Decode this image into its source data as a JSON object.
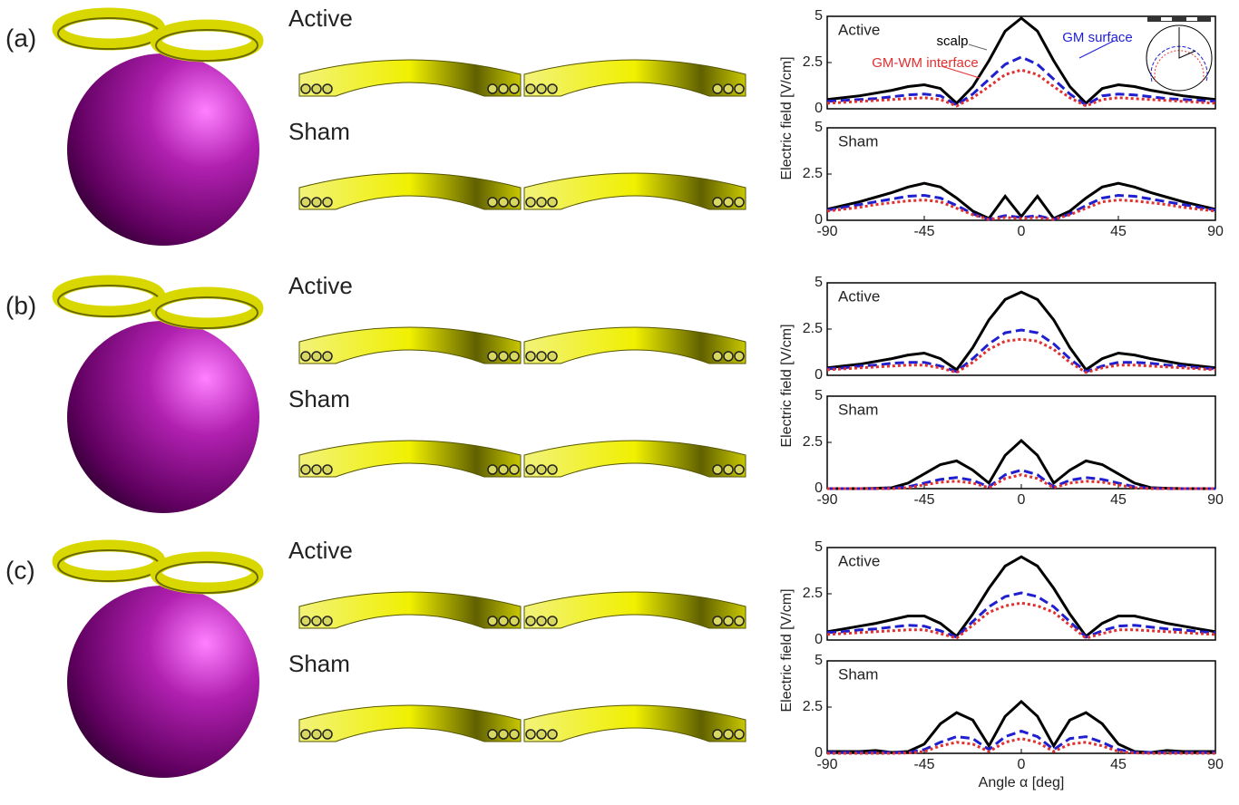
{
  "panels": [
    {
      "label": "(a)",
      "coils": [
        "Active",
        "Sham"
      ]
    },
    {
      "label": "(b)",
      "coils": [
        "Active",
        "Sham"
      ]
    },
    {
      "label": "(c)",
      "coils": [
        "Active",
        "Sham"
      ]
    }
  ],
  "chart_data": [
    {
      "type": "line",
      "title": "Active",
      "x": [
        -90,
        -82.5,
        -75,
        -67.5,
        -60,
        -52.5,
        -45,
        -37.5,
        -30,
        -22.5,
        -15,
        -7.5,
        0,
        7.5,
        15,
        22.5,
        30,
        37.5,
        45,
        52.5,
        60,
        67.5,
        75,
        82.5,
        90
      ],
      "series": [
        {
          "name": "scalp",
          "color": "#000000",
          "linestyle": "solid",
          "values": [
            0.5,
            0.6,
            0.7,
            0.85,
            1.0,
            1.2,
            1.3,
            1.1,
            0.3,
            1.2,
            2.6,
            4.2,
            4.9,
            4.2,
            2.6,
            1.2,
            0.3,
            1.1,
            1.3,
            1.2,
            1.0,
            0.85,
            0.7,
            0.6,
            0.5
          ]
        },
        {
          "name": "GM surface",
          "color": "#1f1fd0",
          "linestyle": "dashed",
          "values": [
            0.4,
            0.45,
            0.5,
            0.55,
            0.65,
            0.75,
            0.8,
            0.7,
            0.2,
            0.8,
            1.6,
            2.4,
            2.8,
            2.4,
            1.6,
            0.8,
            0.2,
            0.7,
            0.8,
            0.75,
            0.65,
            0.55,
            0.5,
            0.45,
            0.4
          ]
        },
        {
          "name": "GM-WM interface",
          "color": "#e03030",
          "linestyle": "dotted",
          "values": [
            0.3,
            0.35,
            0.4,
            0.45,
            0.5,
            0.55,
            0.6,
            0.5,
            0.15,
            0.6,
            1.2,
            1.85,
            2.1,
            1.85,
            1.2,
            0.6,
            0.15,
            0.5,
            0.6,
            0.55,
            0.5,
            0.45,
            0.4,
            0.35,
            0.3
          ]
        }
      ],
      "xlim": [
        -90,
        90
      ],
      "ylim": [
        0,
        5
      ],
      "yticks": [
        0,
        2.5,
        5
      ]
    },
    {
      "type": "line",
      "title": "Sham",
      "x": [
        -90,
        -82.5,
        -75,
        -67.5,
        -60,
        -52.5,
        -45,
        -37.5,
        -30,
        -22.5,
        -15,
        -7.5,
        0,
        7.5,
        15,
        22.5,
        30,
        37.5,
        45,
        52.5,
        60,
        67.5,
        75,
        82.5,
        90
      ],
      "series": [
        {
          "color": "#000000",
          "linestyle": "solid",
          "values": [
            0.6,
            0.8,
            1.0,
            1.25,
            1.5,
            1.8,
            2.0,
            1.8,
            1.2,
            0.5,
            0.1,
            1.3,
            0.2,
            1.3,
            0.1,
            0.5,
            1.2,
            1.8,
            2.0,
            1.8,
            1.5,
            1.25,
            1.0,
            0.8,
            0.6
          ]
        },
        {
          "color": "#1f1fd0",
          "linestyle": "dashed",
          "values": [
            0.55,
            0.7,
            0.85,
            1.0,
            1.15,
            1.3,
            1.35,
            1.2,
            0.8,
            0.35,
            0.05,
            0.25,
            0.15,
            0.25,
            0.05,
            0.35,
            0.8,
            1.2,
            1.35,
            1.3,
            1.15,
            1.0,
            0.85,
            0.7,
            0.55
          ]
        },
        {
          "color": "#e03030",
          "linestyle": "dotted",
          "values": [
            0.5,
            0.6,
            0.7,
            0.85,
            0.95,
            1.05,
            1.1,
            1.0,
            0.65,
            0.3,
            0.05,
            0.15,
            0.1,
            0.15,
            0.05,
            0.3,
            0.65,
            1.0,
            1.1,
            1.05,
            0.95,
            0.85,
            0.7,
            0.6,
            0.5
          ]
        }
      ],
      "xlim": [
        -90,
        90
      ],
      "ylim": [
        0,
        5
      ],
      "yticks": [
        0,
        2.5,
        5
      ],
      "xticks": [
        -90,
        -45,
        0,
        45,
        90
      ],
      "ylabel": "Electric field [V/cm]"
    },
    {
      "type": "line",
      "title": "Active",
      "x": [
        -90,
        -82.5,
        -75,
        -67.5,
        -60,
        -52.5,
        -45,
        -37.5,
        -30,
        -22.5,
        -15,
        -7.5,
        0,
        7.5,
        15,
        22.5,
        30,
        37.5,
        45,
        52.5,
        60,
        67.5,
        75,
        82.5,
        90
      ],
      "series": [
        {
          "color": "#000000",
          "linestyle": "solid",
          "values": [
            0.4,
            0.5,
            0.6,
            0.75,
            0.9,
            1.1,
            1.2,
            0.9,
            0.3,
            1.5,
            3.0,
            4.1,
            4.5,
            4.1,
            3.0,
            1.5,
            0.3,
            0.9,
            1.2,
            1.1,
            0.9,
            0.75,
            0.6,
            0.5,
            0.4
          ]
        },
        {
          "color": "#1f1fd0",
          "linestyle": "dashed",
          "values": [
            0.35,
            0.4,
            0.5,
            0.55,
            0.65,
            0.7,
            0.7,
            0.5,
            0.2,
            0.9,
            1.7,
            2.3,
            2.45,
            2.3,
            1.7,
            0.9,
            0.2,
            0.5,
            0.7,
            0.7,
            0.65,
            0.55,
            0.5,
            0.4,
            0.35
          ]
        },
        {
          "color": "#e03030",
          "linestyle": "dotted",
          "values": [
            0.3,
            0.35,
            0.4,
            0.45,
            0.5,
            0.55,
            0.55,
            0.4,
            0.15,
            0.7,
            1.4,
            1.85,
            1.95,
            1.85,
            1.4,
            0.7,
            0.15,
            0.4,
            0.55,
            0.55,
            0.5,
            0.45,
            0.4,
            0.35,
            0.3
          ]
        }
      ],
      "xlim": [
        -90,
        90
      ],
      "ylim": [
        0,
        5
      ],
      "yticks": [
        0,
        2.5,
        5
      ]
    },
    {
      "type": "line",
      "title": "Sham",
      "x": [
        -90,
        -82.5,
        -75,
        -67.5,
        -60,
        -52.5,
        -45,
        -37.5,
        -30,
        -22.5,
        -15,
        -7.5,
        0,
        7.5,
        15,
        22.5,
        30,
        37.5,
        45,
        52.5,
        60,
        67.5,
        75,
        82.5,
        90
      ],
      "series": [
        {
          "color": "#000000",
          "linestyle": "solid",
          "values": [
            0,
            0,
            0,
            0.02,
            0.05,
            0.3,
            0.8,
            1.3,
            1.5,
            1.0,
            0.3,
            1.8,
            2.6,
            1.8,
            0.3,
            1.0,
            1.5,
            1.3,
            0.8,
            0.3,
            0.05,
            0.02,
            0,
            0,
            0
          ]
        },
        {
          "color": "#1f1fd0",
          "linestyle": "dashed",
          "values": [
            0,
            0,
            0,
            0,
            0.02,
            0.1,
            0.3,
            0.5,
            0.6,
            0.45,
            0.1,
            0.75,
            1.0,
            0.75,
            0.1,
            0.45,
            0.6,
            0.5,
            0.3,
            0.1,
            0.02,
            0,
            0,
            0,
            0
          ]
        },
        {
          "color": "#e03030",
          "linestyle": "dotted",
          "values": [
            0,
            0,
            0,
            0,
            0,
            0.05,
            0.2,
            0.35,
            0.4,
            0.3,
            0.05,
            0.55,
            0.75,
            0.55,
            0.05,
            0.3,
            0.4,
            0.35,
            0.2,
            0.05,
            0,
            0,
            0,
            0,
            0
          ]
        }
      ],
      "xlim": [
        -90,
        90
      ],
      "ylim": [
        0,
        5
      ],
      "yticks": [
        0,
        2.5,
        5
      ],
      "xticks": [
        -90,
        -45,
        0,
        45,
        90
      ],
      "ylabel": "Electric field [V/cm]"
    },
    {
      "type": "line",
      "title": "Active",
      "x": [
        -90,
        -82.5,
        -75,
        -67.5,
        -60,
        -52.5,
        -45,
        -37.5,
        -30,
        -22.5,
        -15,
        -7.5,
        0,
        7.5,
        15,
        22.5,
        30,
        37.5,
        45,
        52.5,
        60,
        67.5,
        75,
        82.5,
        90
      ],
      "series": [
        {
          "color": "#000000",
          "linestyle": "solid",
          "values": [
            0.45,
            0.6,
            0.75,
            0.9,
            1.1,
            1.3,
            1.3,
            0.9,
            0.2,
            1.4,
            2.8,
            4.0,
            4.5,
            4.0,
            2.8,
            1.4,
            0.2,
            0.9,
            1.3,
            1.3,
            1.1,
            0.9,
            0.75,
            0.6,
            0.45
          ]
        },
        {
          "color": "#1f1fd0",
          "linestyle": "dashed",
          "values": [
            0.4,
            0.45,
            0.55,
            0.6,
            0.7,
            0.8,
            0.75,
            0.5,
            0.15,
            1.0,
            1.8,
            2.35,
            2.55,
            2.35,
            1.8,
            1.0,
            0.15,
            0.5,
            0.75,
            0.8,
            0.7,
            0.6,
            0.55,
            0.45,
            0.4
          ]
        },
        {
          "color": "#e03030",
          "linestyle": "dotted",
          "values": [
            0.3,
            0.35,
            0.4,
            0.45,
            0.5,
            0.55,
            0.55,
            0.35,
            0.1,
            0.8,
            1.5,
            1.85,
            2.0,
            1.85,
            1.5,
            0.8,
            0.1,
            0.35,
            0.55,
            0.55,
            0.5,
            0.45,
            0.4,
            0.35,
            0.3
          ]
        }
      ],
      "xlim": [
        -90,
        90
      ],
      "ylim": [
        0,
        5
      ],
      "yticks": [
        0,
        2.5,
        5
      ]
    },
    {
      "type": "line",
      "title": "Sham",
      "x": [
        -90,
        -82.5,
        -75,
        -67.5,
        -60,
        -52.5,
        -45,
        -37.5,
        -30,
        -22.5,
        -15,
        -7.5,
        0,
        7.5,
        15,
        22.5,
        30,
        37.5,
        45,
        52.5,
        60,
        67.5,
        75,
        82.5,
        90
      ],
      "series": [
        {
          "color": "#000000",
          "linestyle": "solid",
          "values": [
            0.1,
            0.1,
            0.1,
            0.15,
            0.05,
            0.1,
            0.5,
            1.6,
            2.2,
            1.8,
            0.4,
            2.0,
            2.8,
            2.0,
            0.4,
            1.8,
            2.2,
            1.6,
            0.5,
            0.1,
            0.05,
            0.15,
            0.1,
            0.1,
            0.1
          ]
        },
        {
          "color": "#1f1fd0",
          "linestyle": "dashed",
          "values": [
            0.05,
            0.05,
            0.05,
            0.05,
            0.05,
            0.05,
            0.2,
            0.6,
            0.9,
            0.8,
            0.2,
            0.9,
            1.2,
            0.9,
            0.2,
            0.8,
            0.9,
            0.6,
            0.2,
            0.05,
            0.05,
            0.05,
            0.05,
            0.05,
            0.05
          ]
        },
        {
          "color": "#e03030",
          "linestyle": "dotted",
          "values": [
            0,
            0,
            0,
            0,
            0,
            0.02,
            0.1,
            0.4,
            0.6,
            0.5,
            0.1,
            0.6,
            0.8,
            0.6,
            0.1,
            0.5,
            0.6,
            0.4,
            0.1,
            0.02,
            0,
            0,
            0,
            0,
            0
          ]
        }
      ],
      "xlim": [
        -90,
        90
      ],
      "ylim": [
        0,
        5
      ],
      "yticks": [
        0,
        2.5,
        5
      ],
      "xticks": [
        -90,
        -45,
        0,
        45,
        90
      ],
      "ylabel": "Electric field [V/cm]",
      "xlabel": "Angle α [deg]"
    }
  ]
}
